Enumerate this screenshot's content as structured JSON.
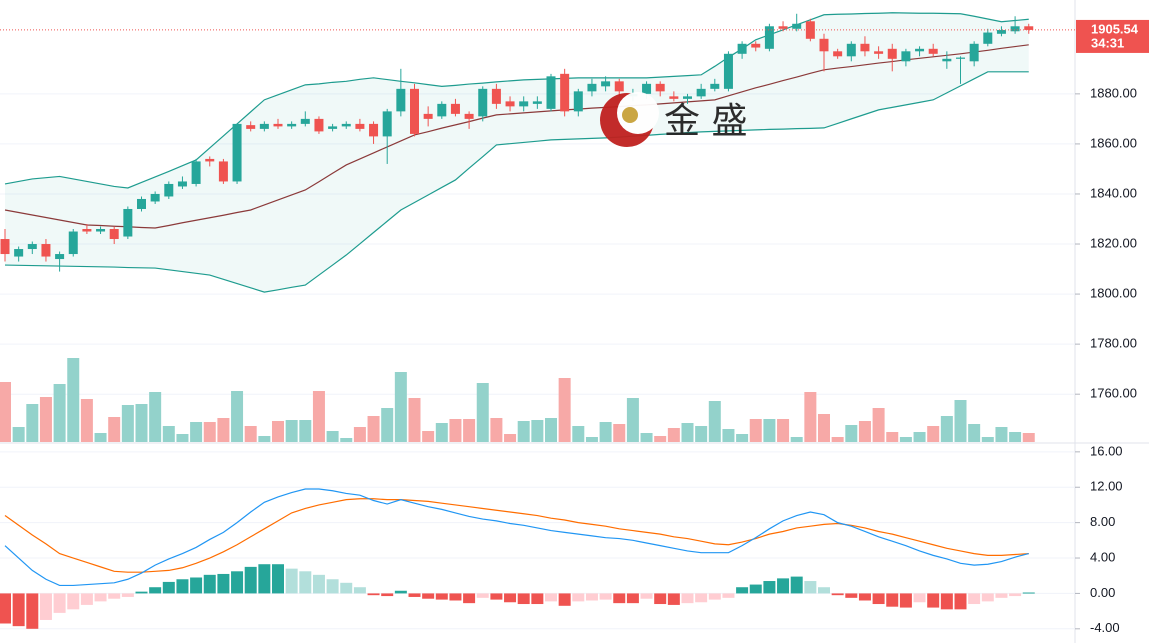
{
  "chart_data": [
    {
      "type": "candlestick",
      "open": [
        1822,
        1815,
        1818,
        1820,
        1814,
        1816,
        1826,
        1825,
        1826,
        1823,
        1834,
        1837,
        1839,
        1843,
        1844,
        1854,
        1853,
        1845,
        1867.5,
        1866,
        1868,
        1867,
        1868,
        1870,
        1866,
        1867,
        1868,
        1868,
        1863,
        1873,
        1882,
        1872,
        1871,
        1876,
        1872,
        1871,
        1882,
        1877,
        1875,
        1876,
        1874,
        1888,
        1873,
        1881,
        1883,
        1885,
        1879,
        1880,
        1884,
        1879,
        1878,
        1879,
        1882,
        1882,
        1896,
        1900,
        1898,
        1907,
        1906,
        1909,
        1902,
        1897,
        1895,
        1900,
        1897,
        1898,
        1893,
        1897,
        1898,
        1893,
        1894,
        1893,
        1900,
        1904,
        1905,
        1907
      ],
      "high": [
        1826,
        1819,
        1821,
        1822,
        1817,
        1826,
        1828,
        1827,
        1827,
        1835,
        1839,
        1841,
        1845,
        1847,
        1854,
        1855,
        1854,
        1868,
        1869,
        1869,
        1870,
        1869,
        1873,
        1871,
        1868,
        1869,
        1870,
        1869,
        1874,
        1890,
        1884,
        1875,
        1877,
        1878,
        1873,
        1883,
        1884,
        1879,
        1879,
        1879,
        1888,
        1890,
        1882,
        1886,
        1887,
        1886,
        1882,
        1885,
        1885,
        1881,
        1880,
        1884,
        1886,
        1897,
        1901,
        1901,
        1908,
        1909,
        1912,
        1910,
        1904,
        1898,
        1901,
        1903,
        1899,
        1900,
        1898,
        1899,
        1900,
        1897,
        1895,
        1901,
        1906,
        1907,
        1911,
        1908
      ],
      "low": [
        1813,
        1813,
        1816,
        1813,
        1809,
        1815,
        1824,
        1824,
        1820,
        1822,
        1833,
        1836,
        1838,
        1842,
        1843,
        1851,
        1844,
        1844,
        1865,
        1865,
        1866,
        1866,
        1867,
        1864,
        1865,
        1866,
        1865,
        1860,
        1852,
        1871,
        1863,
        1867,
        1870,
        1871,
        1866,
        1869,
        1874,
        1873,
        1873,
        1874,
        1873,
        1871,
        1871,
        1879,
        1881,
        1879,
        1877,
        1878,
        1879,
        1877,
        1876,
        1878,
        1881,
        1881,
        1894,
        1897,
        1897,
        1905,
        1905,
        1901,
        1889,
        1894,
        1893,
        1895,
        1894,
        1889,
        1891,
        1895,
        1895,
        1890,
        1884,
        1891,
        1899,
        1903,
        1904,
        1904
      ],
      "close": [
        1816,
        1818,
        1820,
        1815,
        1816,
        1825,
        1825,
        1826,
        1822,
        1834,
        1838,
        1840,
        1844,
        1845,
        1853,
        1853,
        1845,
        1868,
        1866,
        1868,
        1867,
        1868,
        1870,
        1865,
        1867,
        1868,
        1866,
        1863,
        1873,
        1882,
        1864,
        1870,
        1876,
        1872,
        1870,
        1882,
        1876,
        1875,
        1877,
        1877,
        1887,
        1873,
        1881,
        1884,
        1885,
        1881,
        1880,
        1884,
        1881,
        1878,
        1879,
        1882,
        1884,
        1896,
        1900,
        1898.5,
        1907,
        1906,
        1908,
        1902,
        1897,
        1895,
        1900,
        1897,
        1896,
        1894,
        1897,
        1898,
        1896,
        1894,
        1894.5,
        1900,
        1904.5,
        1905.5,
        1907,
        1905.54
      ],
      "up_color": "#26a69a",
      "down_color": "#ef5350",
      "volume": {
        "values": [
          60,
          15,
          38,
          45,
          58,
          84,
          43,
          9,
          25,
          37,
          38,
          50,
          16,
          8,
          20,
          20,
          24,
          51,
          16,
          6,
          21,
          22,
          22,
          51,
          11,
          4,
          15,
          26,
          34,
          70,
          44,
          11,
          19,
          23,
          23,
          59,
          24,
          8,
          21,
          22,
          24,
          64,
          16,
          5,
          20,
          18,
          44,
          9,
          6,
          14,
          19,
          16,
          41,
          13,
          8,
          23,
          23,
          23,
          5,
          50,
          28,
          5,
          17,
          21,
          34,
          10,
          5,
          10,
          16,
          26,
          42,
          18,
          5,
          15,
          10,
          9
        ],
        "up_color": "#93d2cb",
        "down_color": "#f7a9a7"
      },
      "bollinger": {
        "upper": [
          1844,
          1845,
          1846,
          1846.5,
          1847,
          1846,
          1845,
          1844,
          1843,
          1842.4,
          1844.6,
          1846.8,
          1849,
          1851.3,
          1853.6,
          1858.4,
          1863.2,
          1868,
          1872.8,
          1877.6,
          1879.6,
          1881.6,
          1883.6,
          1884,
          1884.6,
          1885,
          1885.8,
          1886.4,
          1885.7,
          1885,
          1884.4,
          1883.7,
          1883,
          1883.4,
          1883.9,
          1884.3,
          1884.8,
          1885.2,
          1885.6,
          1885.8,
          1886,
          1886.2,
          1886.4,
          1886.4,
          1886.4,
          1886.4,
          1886.4,
          1886.4,
          1886.7,
          1887,
          1887.3,
          1887.6,
          1891,
          1894.6,
          1898,
          1901.6,
          1903.6,
          1905.6,
          1907.6,
          1909.6,
          1911.6,
          1911.8,
          1911.9,
          1912.1,
          1912.2,
          1912.4,
          1912.3,
          1912.2,
          1912.2,
          1912.1,
          1912,
          1911,
          1909.9,
          1908.8,
          1909.3,
          1909.8
        ],
        "middle": [
          1833.6,
          1832.6,
          1831.6,
          1830.6,
          1829.6,
          1828.6,
          1827.6,
          1827.4,
          1827.1,
          1826.9,
          1826.6,
          1826.4,
          1827.4,
          1828.5,
          1829.5,
          1830.5,
          1831.5,
          1832.6,
          1833.6,
          1835.6,
          1837.6,
          1839.6,
          1841.6,
          1844.9,
          1848.3,
          1851.6,
          1854,
          1856.4,
          1858.8,
          1861.2,
          1863.6,
          1864.9,
          1866.3,
          1867.6,
          1868.9,
          1870.3,
          1871.6,
          1872,
          1872.4,
          1872.8,
          1873.2,
          1873.6,
          1873.9,
          1874.3,
          1874.6,
          1874.9,
          1875.3,
          1875.6,
          1876,
          1876.4,
          1876.8,
          1877.2,
          1877.6,
          1879.2,
          1880.8,
          1882.4,
          1883.8,
          1885.3,
          1886.7,
          1888.2,
          1889.6,
          1890.3,
          1890.9,
          1891.6,
          1892.3,
          1892.9,
          1893.6,
          1894.2,
          1894.8,
          1895.4,
          1896,
          1896.7,
          1897.4,
          1898.2,
          1898.9,
          1899.6
        ],
        "lower": [
          1811.6,
          1811.5,
          1811.4,
          1811.3,
          1811.2,
          1811.1,
          1811,
          1810.9,
          1810.8,
          1810.6,
          1810.5,
          1810.4,
          1809.7,
          1809,
          1808.3,
          1807.6,
          1805.9,
          1804.2,
          1802.5,
          1800.8,
          1801.7,
          1802.7,
          1803.6,
          1807.6,
          1811.6,
          1815.6,
          1820.1,
          1824.6,
          1829.1,
          1833.6,
          1836.6,
          1839.6,
          1842.6,
          1845.6,
          1850.3,
          1854.9,
          1859.6,
          1860.1,
          1860.6,
          1861.1,
          1861.6,
          1861.8,
          1862,
          1862.2,
          1862.4,
          1862.7,
          1863.1,
          1863.4,
          1863.8,
          1864.1,
          1864.5,
          1864.8,
          1865,
          1865.2,
          1865.4,
          1865.6,
          1865.8,
          1865.9,
          1866.1,
          1866.2,
          1866.4,
          1868.2,
          1870,
          1871.8,
          1873.6,
          1874.6,
          1875.6,
          1876.6,
          1877.6,
          1880.4,
          1883.2,
          1886,
          1888.8,
          1888.8,
          1888.8,
          1888.8
        ],
        "band_color": "#1e9c8f",
        "middle_color": "#8b3a3a",
        "fill_color": "rgba(38,166,154,0.07)"
      },
      "ylim": [
        1740.5,
        1917.5
      ],
      "yticks": [
        {
          "value": 1760,
          "label": "1760.00"
        },
        {
          "value": 1780,
          "label": "1780.00"
        },
        {
          "value": 1800,
          "label": "1800.00"
        },
        {
          "value": 1820,
          "label": "1820.00"
        },
        {
          "value": 1840,
          "label": "1840.00"
        },
        {
          "value": 1860,
          "label": "1860.00"
        },
        {
          "value": 1880,
          "label": "1880.00"
        }
      ],
      "grid": true,
      "last_price": 1905.54,
      "countdown": "34:31",
      "watermark": "金 盛"
    },
    {
      "type": "macd",
      "dif": {
        "color": "#2196f3",
        "values": [
          5.4,
          4,
          2.6,
          1.6,
          0.9,
          0.9,
          1,
          1.1,
          1.2,
          1.6,
          2.3,
          3.2,
          3.9,
          4.5,
          5.2,
          6.1,
          6.9,
          8,
          9.2,
          10.3,
          10.9,
          11.4,
          11.8,
          11.8,
          11.6,
          11.3,
          11.1,
          10.5,
          10.1,
          10.6,
          10.2,
          9.8,
          9.5,
          9.1,
          8.7,
          8.4,
          8.2,
          7.9,
          7.7,
          7.4,
          7.1,
          6.9,
          6.7,
          6.5,
          6.3,
          6.2,
          6,
          5.7,
          5.4,
          5.1,
          4.8,
          4.6,
          4.6,
          4.6,
          5.4,
          6.3,
          7.3,
          8.2,
          8.8,
          9.2,
          8.9,
          8,
          7.6,
          7,
          6.4,
          5.9,
          5.4,
          4.8,
          4.3,
          3.9,
          3.4,
          3.2,
          3.3,
          3.6,
          4.1,
          4.5
        ]
      },
      "dea": {
        "color": "#ff6d00",
        "values": [
          8.8,
          7.7,
          6.6,
          5.6,
          4.5,
          4,
          3.5,
          3,
          2.5,
          2.4,
          2.4,
          2.5,
          2.6,
          2.9,
          3.4,
          4,
          4.7,
          5.5,
          6.4,
          7.3,
          8.2,
          9.1,
          9.6,
          10,
          10.3,
          10.6,
          10.7,
          10.7,
          10.6,
          10.6,
          10.5,
          10.4,
          10.2,
          10,
          9.8,
          9.6,
          9.4,
          9.2,
          9,
          8.8,
          8.5,
          8.3,
          8,
          7.8,
          7.6,
          7.3,
          7.1,
          6.9,
          6.7,
          6.4,
          6.2,
          5.9,
          5.6,
          5.5,
          5.8,
          6.2,
          6.7,
          7,
          7.4,
          7.6,
          7.8,
          7.9,
          7.7,
          7.4,
          7,
          6.7,
          6.3,
          5.9,
          5.5,
          5.1,
          4.8,
          4.5,
          4.3,
          4.3,
          4.4,
          4.5
        ]
      },
      "histogram": {
        "values": [
          -3.4,
          -3.7,
          -4,
          -3,
          -2.2,
          -1.8,
          -1.3,
          -0.9,
          -0.6,
          -0.4,
          0.2,
          0.7,
          1.3,
          1.6,
          1.8,
          2.1,
          2.2,
          2.5,
          3,
          3.3,
          3.3,
          2.8,
          2.5,
          2.1,
          1.6,
          1.2,
          0.7,
          -0.2,
          -0.3,
          0.3,
          -0.4,
          -0.6,
          -0.7,
          -0.8,
          -1.1,
          -0.5,
          -0.7,
          -1,
          -1.2,
          -1.2,
          -0.9,
          -1.4,
          -0.9,
          -0.8,
          -0.7,
          -1.1,
          -1.1,
          -0.6,
          -1.2,
          -1.3,
          -1.1,
          -1,
          -0.7,
          -0.5,
          0.7,
          1,
          1.4,
          1.7,
          1.9,
          1.4,
          0.7,
          -0.2,
          -0.5,
          -0.8,
          -1.2,
          -1.5,
          -1.6,
          -1,
          -1.6,
          -1.8,
          -1.8,
          -1.2,
          -0.9,
          -0.5,
          -0.3,
          0.1
        ],
        "up_grow_color": "#26a69a",
        "up_fall_color": "#b2dfdb",
        "down_grow_color": "#ef5350",
        "down_fall_color": "#ffcdd2"
      },
      "ylim": [
        -4.7,
        17
      ],
      "yticks": [
        {
          "value": -4,
          "label": "-4.00"
        },
        {
          "value": 0,
          "label": "0.00"
        },
        {
          "value": 4,
          "label": "4.00"
        },
        {
          "value": 8,
          "label": "8.00"
        },
        {
          "value": 12,
          "label": "12.00"
        },
        {
          "value": 16,
          "label": "16.00"
        }
      ],
      "grid": true
    }
  ]
}
